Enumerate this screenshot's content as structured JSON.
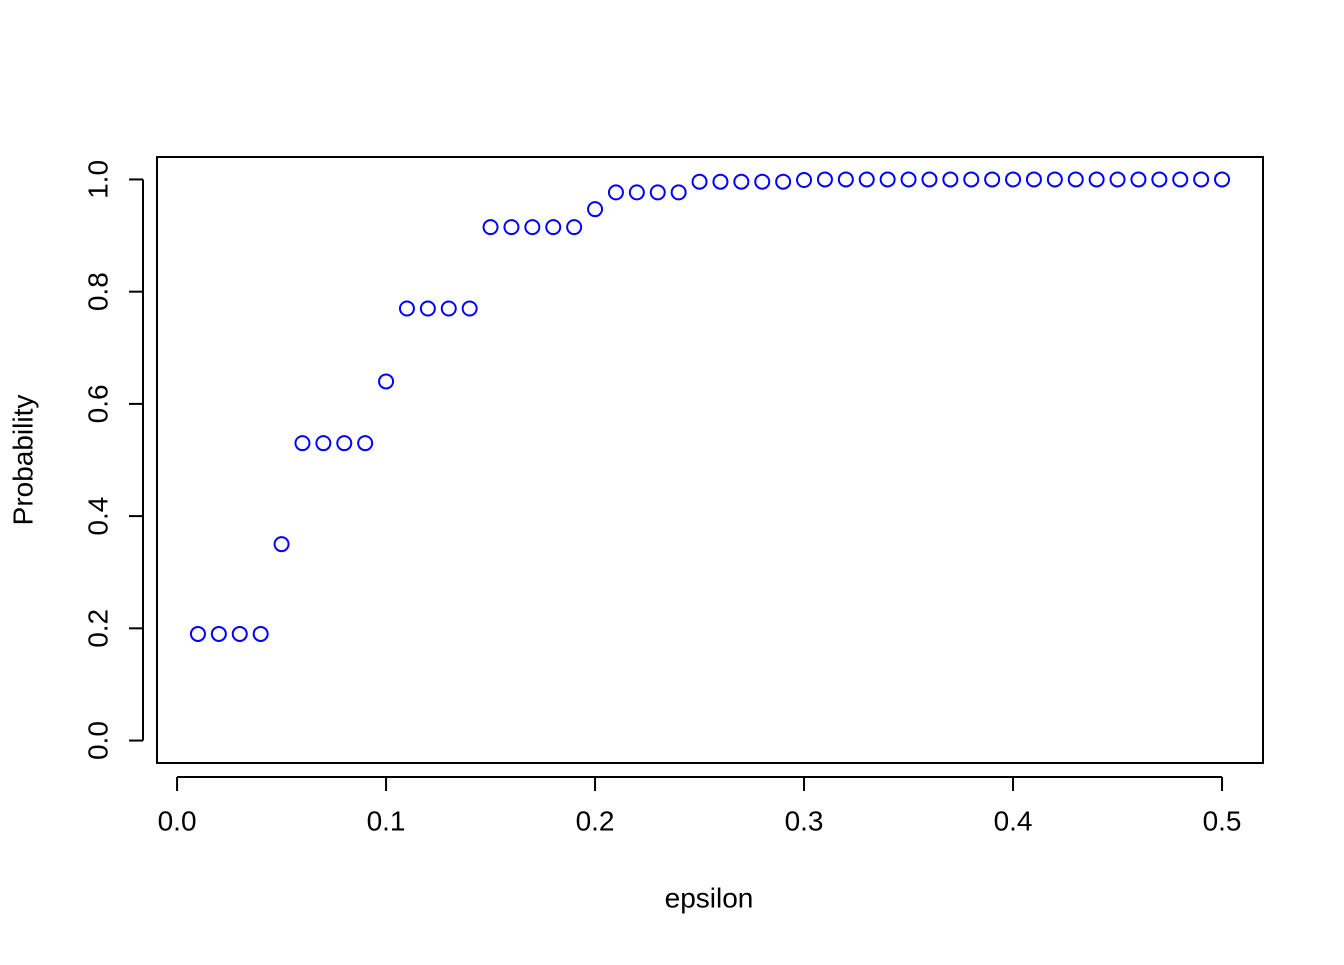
{
  "chart_data": {
    "type": "scatter",
    "xlabel": "epsilon",
    "ylabel": "Probability",
    "x": [
      0.01,
      0.02,
      0.03,
      0.04,
      0.05,
      0.06,
      0.07,
      0.08,
      0.09,
      0.1,
      0.11,
      0.12,
      0.13,
      0.14,
      0.15,
      0.16,
      0.17,
      0.18,
      0.19,
      0.2,
      0.21,
      0.22,
      0.23,
      0.24,
      0.25,
      0.26,
      0.27,
      0.28,
      0.29,
      0.3,
      0.31,
      0.32,
      0.33,
      0.34,
      0.35,
      0.36,
      0.37,
      0.38,
      0.39,
      0.4,
      0.41,
      0.42,
      0.43,
      0.44,
      0.45,
      0.46,
      0.47,
      0.48,
      0.49,
      0.5
    ],
    "values": [
      0.19,
      0.19,
      0.19,
      0.19,
      0.35,
      0.53,
      0.53,
      0.53,
      0.53,
      0.64,
      0.77,
      0.77,
      0.77,
      0.77,
      0.915,
      0.915,
      0.915,
      0.915,
      0.915,
      0.947,
      0.977,
      0.977,
      0.977,
      0.977,
      0.996,
      0.996,
      0.996,
      0.996,
      0.996,
      0.999,
      1.0,
      1.0,
      1.0,
      1.0,
      1.0,
      1.0,
      1.0,
      1.0,
      1.0,
      1.0,
      1.0,
      1.0,
      1.0,
      1.0,
      1.0,
      1.0,
      1.0,
      1.0,
      1.0,
      1.0
    ],
    "color": "#0000ff",
    "xlim": [
      -0.0096,
      0.5196
    ],
    "ylim": [
      -0.04,
      1.04
    ],
    "xticks": [
      {
        "value": 0,
        "label": "0.0"
      },
      0.1,
      0.2,
      0.3,
      0.4,
      0.5
    ],
    "yticks": [
      {
        "value": 0,
        "label": "0.0"
      },
      0.2,
      0.4,
      0.6,
      0.8,
      {
        "value": 1,
        "label": "1.0"
      }
    ]
  }
}
